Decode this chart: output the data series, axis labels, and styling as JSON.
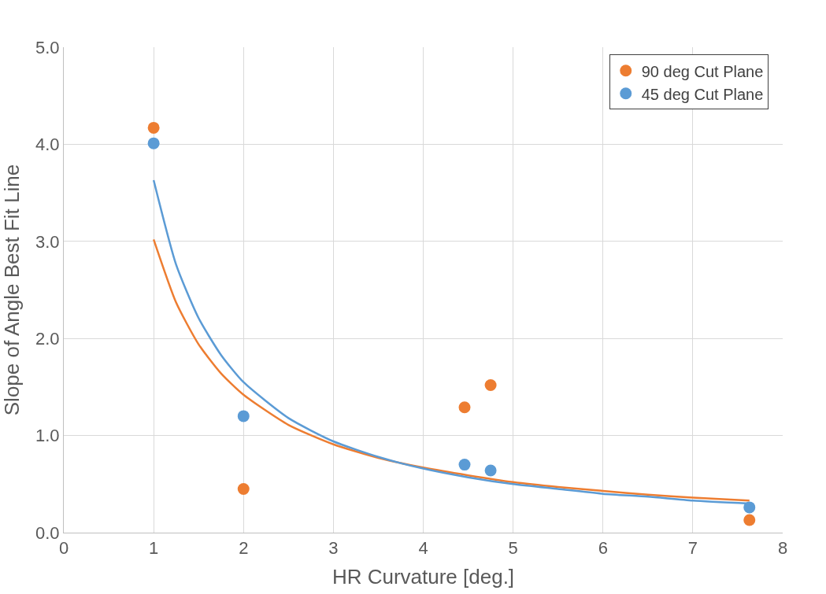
{
  "chart_data": {
    "type": "scatter",
    "xlabel": "HR Curvature [deg.]",
    "ylabel": "Slope of Angle Best Fit Line",
    "xlim": [
      0,
      8
    ],
    "xticks": [
      0,
      1,
      2,
      3,
      4,
      5,
      6,
      7,
      8
    ],
    "ylim": [
      0,
      5
    ],
    "yticks": [
      {
        "value": 0,
        "label": "0.0"
      },
      {
        "value": 1,
        "label": "1.0"
      },
      {
        "value": 2,
        "label": "2.0"
      },
      {
        "value": 3,
        "label": "3.0"
      },
      {
        "value": 4,
        "label": "4.0"
      },
      {
        "value": 5,
        "label": "5.0"
      }
    ],
    "grid": true,
    "legend": "top right",
    "series": [
      {
        "name": "90 deg Cut Plane",
        "color": "#ed7d31",
        "marker": "circle",
        "x": [
          1,
          2,
          4.46,
          4.75,
          7.63
        ],
        "values": [
          4.17,
          0.45,
          1.29,
          1.52,
          0.13
        ]
      },
      {
        "name": "45 deg Cut Plane",
        "color": "#5b9bd5",
        "marker": "circle",
        "x": [
          1,
          2,
          4.46,
          4.75,
          7.63
        ],
        "values": [
          4.01,
          1.2,
          0.7,
          0.64,
          0.26
        ]
      },
      {
        "type": "line",
        "marker": "none",
        "color": "#ed7d31",
        "x": [
          1,
          1.25,
          1.5,
          1.75,
          2,
          2.5,
          3,
          3.5,
          4,
          4.5,
          5,
          5.5,
          6,
          6.5,
          7,
          7.63
        ],
        "values": [
          3.02,
          2.37,
          1.94,
          1.64,
          1.42,
          1.11,
          0.91,
          0.77,
          0.67,
          0.59,
          0.52,
          0.47,
          0.43,
          0.39,
          0.36,
          0.33
        ]
      },
      {
        "type": "line",
        "marker": "none",
        "color": "#5b9bd5",
        "x": [
          1,
          1.25,
          1.5,
          1.75,
          2,
          2.5,
          3,
          3.5,
          4,
          4.5,
          5,
          5.5,
          6,
          6.5,
          7,
          7.63
        ],
        "values": [
          3.63,
          2.76,
          2.21,
          1.83,
          1.55,
          1.18,
          0.94,
          0.78,
          0.66,
          0.57,
          0.5,
          0.45,
          0.4,
          0.37,
          0.33,
          0.3
        ]
      }
    ]
  }
}
